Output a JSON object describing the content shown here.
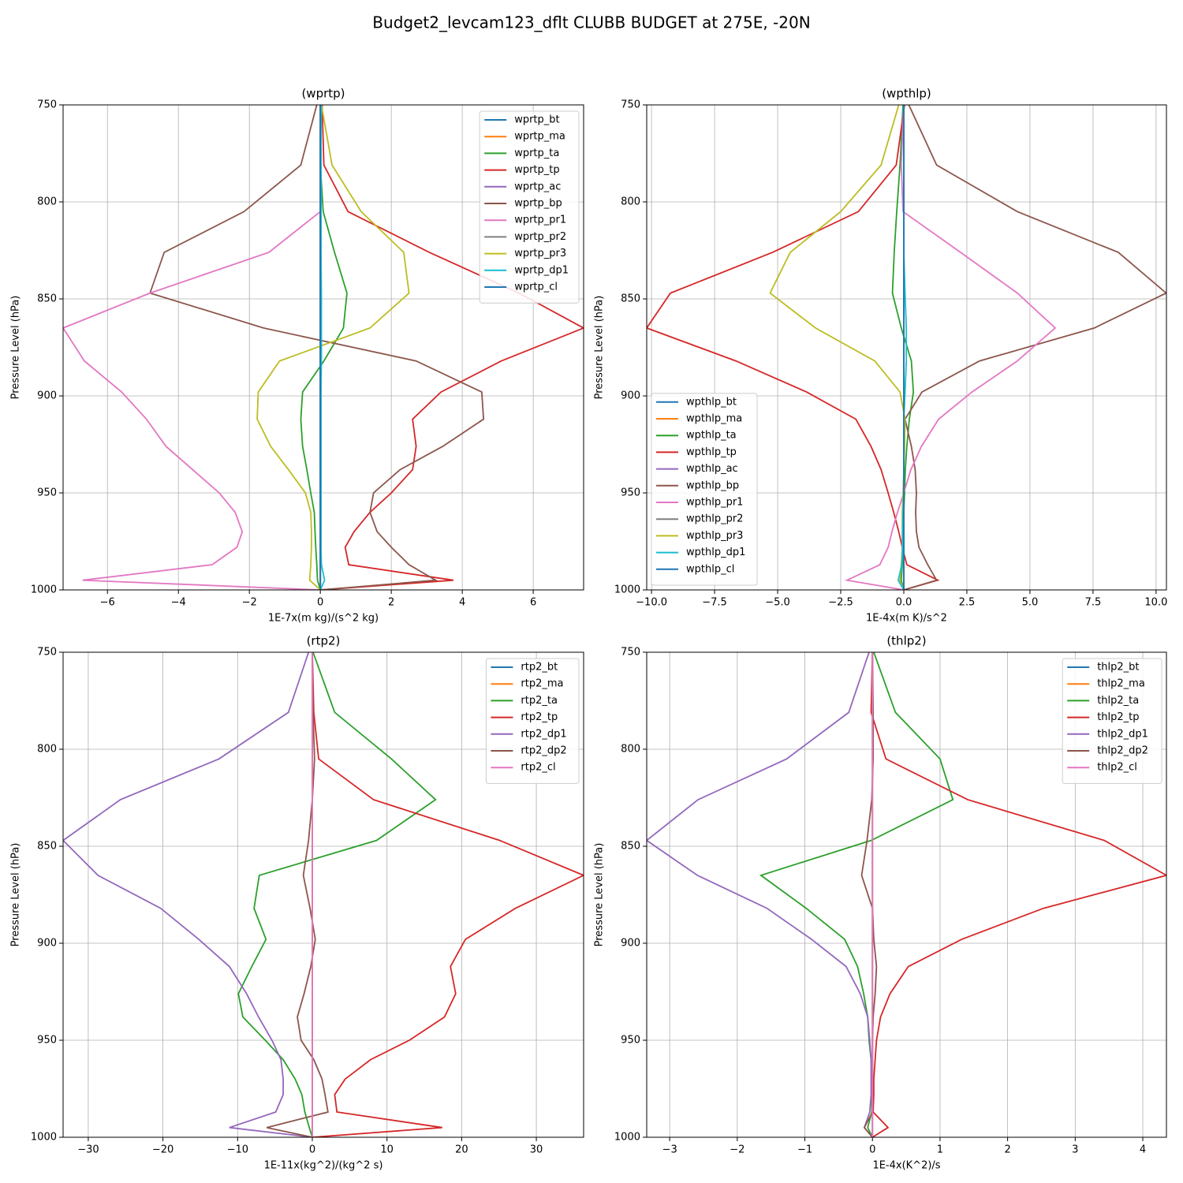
{
  "title": "Budget2_levcam123_dflt CLUBB BUDGET at 275E, -20N",
  "chart_data": [
    {
      "type": "line",
      "title": "(wprtp)",
      "x_label": "1E-7x(m kg)/(s^2 kg)",
      "y_label": "Pressure Level (hPa)",
      "y": [
        750,
        781,
        805,
        826,
        847,
        865,
        882,
        898,
        912,
        926,
        938,
        950,
        960,
        970,
        978,
        987,
        995,
        1000
      ],
      "xlim": [
        -7.25,
        7.42
      ],
      "ylim": [
        1000,
        750
      ],
      "xticks": [
        {
          "value": -6,
          "label": "−6"
        },
        {
          "value": -4,
          "label": "−4"
        },
        {
          "value": -2,
          "label": "−2"
        },
        0,
        2,
        4,
        6
      ],
      "yticks": [
        750,
        800,
        850,
        900,
        950,
        1000
      ],
      "grid": true,
      "legend": "upper right",
      "series": [
        {
          "name": "wprtp_bt",
          "color": "#1f77b4",
          "values": [
            0,
            0,
            0,
            0,
            0,
            0,
            0,
            0,
            0,
            0,
            0,
            0,
            0,
            0,
            0,
            0,
            0,
            0
          ]
        },
        {
          "name": "wprtp_ma",
          "color": "#ff7f0e",
          "values": [
            0,
            0,
            0,
            0,
            0,
            0,
            0,
            0,
            0,
            0,
            0,
            0,
            0,
            0,
            0,
            0,
            0,
            0
          ]
        },
        {
          "name": "wprtp_ta",
          "color": "#2ca02c",
          "values": [
            0,
            0,
            0.08,
            0.4,
            0.75,
            0.65,
            0.1,
            -0.5,
            -0.55,
            -0.5,
            -0.38,
            -0.27,
            -0.17,
            -0.15,
            -0.13,
            -0.1,
            -0.08,
            0
          ]
        },
        {
          "name": "wprtp_tp",
          "color": "#d62728",
          "values": [
            0.05,
            0.1,
            0.78,
            3.07,
            5.6,
            7.42,
            5.1,
            3.4,
            2.6,
            2.7,
            2.6,
            2.0,
            1.4,
            0.95,
            0.7,
            0.8,
            3.75,
            0
          ]
        },
        {
          "name": "wprtp_ac",
          "color": "#9467bd",
          "values": [
            0,
            0,
            0,
            0,
            0,
            0,
            0,
            0,
            0,
            0,
            0,
            0,
            0,
            0,
            0,
            0,
            0,
            0
          ]
        },
        {
          "name": "wprtp_bp",
          "color": "#8c564b",
          "values": [
            -0.1,
            -0.55,
            -2.15,
            -4.4,
            -4.8,
            -1.6,
            2.7,
            4.55,
            4.6,
            3.45,
            2.25,
            1.5,
            1.4,
            1.6,
            2.0,
            2.5,
            3.25,
            0
          ]
        },
        {
          "name": "wprtp_pr1",
          "color": "#e377c2",
          "values": [
            0,
            0,
            0,
            -1.45,
            -4.8,
            -7.25,
            -6.65,
            -5.6,
            -4.9,
            -4.35,
            -3.6,
            -2.85,
            -2.4,
            -2.2,
            -2.35,
            -3.05,
            -6.7,
            0
          ]
        },
        {
          "name": "wprtp_pr2",
          "color": "#7f7f7f",
          "values": [
            0,
            0,
            0,
            0,
            0,
            0,
            0,
            0,
            0,
            0,
            0,
            0,
            0,
            0,
            0,
            0,
            0,
            0
          ]
        },
        {
          "name": "wprtp_pr3",
          "color": "#bcbd22",
          "values": [
            0.03,
            0.33,
            1.15,
            2.35,
            2.5,
            1.4,
            -1.15,
            -1.75,
            -1.78,
            -1.4,
            -0.9,
            -0.42,
            -0.27,
            -0.25,
            -0.25,
            -0.27,
            -0.3,
            0
          ]
        },
        {
          "name": "wprtp_dp1",
          "color": "#17becf",
          "values": [
            0.02,
            0.02,
            0.02,
            0.02,
            0.03,
            0.03,
            0.03,
            0.02,
            0.02,
            0.02,
            0.02,
            0.02,
            0.02,
            0.02,
            0.02,
            0.03,
            0.12,
            0
          ]
        },
        {
          "name": "wprtp_cl",
          "color": "#1f77b4",
          "values": [
            0,
            0,
            0,
            0,
            0,
            0,
            0,
            0,
            0,
            0,
            0,
            0,
            0,
            0,
            0,
            0,
            0,
            0
          ]
        }
      ]
    },
    {
      "type": "line",
      "title": "(wpthlp)",
      "x_label": "1E-4x(m K)/s^2",
      "y_label": "Pressure Level (hPa)",
      "y": [
        750,
        781,
        805,
        826,
        847,
        865,
        882,
        898,
        912,
        926,
        938,
        950,
        960,
        970,
        978,
        987,
        995,
        1000
      ],
      "xlim": [
        -10.19,
        10.41
      ],
      "ylim": [
        1000,
        750
      ],
      "xticks": [
        {
          "value": -10,
          "label": "−10.0"
        },
        {
          "value": -7.5,
          "label": "−7.5"
        },
        {
          "value": -5,
          "label": "−5.0"
        },
        {
          "value": -2.5,
          "label": "−2.5"
        },
        {
          "value": 0,
          "label": "0.0"
        },
        2.5,
        {
          "value": 5,
          "label": "5.0"
        },
        7.5,
        {
          "value": 10,
          "label": "10.0"
        }
      ],
      "yticks": [
        750,
        800,
        850,
        900,
        950,
        1000
      ],
      "grid": true,
      "legend": "lower left",
      "series": [
        {
          "name": "wpthlp_bt",
          "color": "#1f77b4",
          "values": [
            0,
            0,
            0,
            0,
            0,
            0,
            0,
            0,
            0,
            0,
            0,
            0,
            0,
            0,
            0,
            0,
            0,
            0
          ]
        },
        {
          "name": "wpthlp_ma",
          "color": "#ff7f0e",
          "values": [
            0,
            0,
            0,
            0,
            0,
            0,
            0,
            0,
            0,
            0,
            0,
            0,
            0,
            0,
            0,
            0,
            0,
            0
          ]
        },
        {
          "name": "wpthlp_ta",
          "color": "#2ca02c",
          "values": [
            -0.03,
            -0.15,
            -0.28,
            -0.38,
            -0.45,
            -0.1,
            0.3,
            0.38,
            0.22,
            0.12,
            0.06,
            0.03,
            0,
            -0.03,
            -0.03,
            -0.06,
            -0.1,
            0
          ]
        },
        {
          "name": "wpthlp_tp",
          "color": "#d62728",
          "values": [
            0.03,
            -0.3,
            -1.8,
            -5.2,
            -9.25,
            -10.19,
            -6.65,
            -3.85,
            -1.9,
            -1.3,
            -0.9,
            -0.62,
            -0.4,
            -0.2,
            -0.06,
            0.12,
            1.35,
            0
          ]
        },
        {
          "name": "wpthlp_ac",
          "color": "#9467bd",
          "values": [
            0,
            0,
            0,
            0,
            0,
            0,
            0,
            0,
            0,
            0,
            0,
            0,
            0,
            0,
            0,
            0,
            0,
            0
          ]
        },
        {
          "name": "wpthlp_bp",
          "color": "#8c564b",
          "values": [
            0.2,
            1.3,
            4.5,
            8.5,
            10.4,
            7.55,
            3.0,
            0.72,
            0.05,
            0.3,
            0.45,
            0.5,
            0.47,
            0.5,
            0.6,
            0.95,
            1.3,
            0
          ]
        },
        {
          "name": "wpthlp_pr1",
          "color": "#e377c2",
          "values": [
            0,
            -0.1,
            -0.03,
            2.25,
            4.5,
            6.0,
            4.5,
            2.7,
            1.38,
            0.7,
            0.28,
            0,
            -0.25,
            -0.47,
            -0.62,
            -0.95,
            -2.25,
            0
          ]
        },
        {
          "name": "wpthlp_pr2",
          "color": "#7f7f7f",
          "values": [
            0,
            0,
            0,
            0,
            0,
            0,
            0,
            0,
            0,
            0,
            0,
            0,
            0,
            0,
            0,
            0,
            0,
            0
          ]
        },
        {
          "name": "wpthlp_pr3",
          "color": "#bcbd22",
          "values": [
            -0.2,
            -0.9,
            -2.5,
            -4.5,
            -5.3,
            -3.5,
            -1.15,
            -0.15,
            0.05,
            0.03,
            0,
            -0.03,
            -0.06,
            -0.06,
            -0.06,
            -0.1,
            -0.15,
            0
          ]
        },
        {
          "name": "wpthlp_dp1",
          "color": "#17becf",
          "values": [
            0,
            0,
            0,
            0,
            0.05,
            0.1,
            0.1,
            0.05,
            0,
            0,
            0,
            0,
            -0.03,
            -0.05,
            -0.05,
            -0.08,
            -0.22,
            0
          ]
        },
        {
          "name": "wpthlp_cl",
          "color": "#1f77b4",
          "values": [
            0,
            0,
            0,
            0,
            0,
            0,
            0,
            0,
            0,
            0,
            0,
            0,
            0,
            0,
            0,
            0,
            0,
            0
          ]
        }
      ]
    },
    {
      "type": "line",
      "title": "(rtp2)",
      "x_label": "1E-11x(kg^2)/(kg^2 s)",
      "y_label": "Pressure Level (hPa)",
      "y": [
        750,
        781,
        805,
        826,
        847,
        865,
        882,
        898,
        912,
        926,
        938,
        950,
        960,
        970,
        978,
        987,
        995,
        1000
      ],
      "xlim": [
        -33.37,
        36.33
      ],
      "ylim": [
        1000,
        750
      ],
      "xticks": [
        {
          "value": -30,
          "label": "−30"
        },
        {
          "value": -20,
          "label": "−20"
        },
        {
          "value": -10,
          "label": "−10"
        },
        0,
        10,
        20,
        30
      ],
      "yticks": [
        750,
        800,
        850,
        900,
        950,
        1000
      ],
      "grid": true,
      "legend": "upper right",
      "series": [
        {
          "name": "rtp2_bt",
          "color": "#1f77b4",
          "values": [
            0,
            0,
            0,
            0,
            0,
            0,
            0,
            0,
            0,
            0,
            0,
            0,
            0,
            0,
            0,
            0,
            0,
            0
          ]
        },
        {
          "name": "rtp2_ma",
          "color": "#ff7f0e",
          "values": [
            0,
            0,
            0,
            0,
            0,
            0,
            0,
            0,
            0,
            0,
            0,
            0,
            0,
            0,
            0,
            0,
            0,
            0
          ]
        },
        {
          "name": "rtp2_ta",
          "color": "#2ca02c",
          "values": [
            0.1,
            3.0,
            10.6,
            16.5,
            8.6,
            -7.1,
            -7.8,
            -6.2,
            -8.1,
            -9.9,
            -9.3,
            -6.3,
            -3.9,
            -2.3,
            -1.4,
            -1.0,
            -0.4,
            0
          ]
        },
        {
          "name": "rtp2_tp",
          "color": "#d62728",
          "values": [
            0,
            0.2,
            0.85,
            8.2,
            25.1,
            36.33,
            27.2,
            20.5,
            18.5,
            19.2,
            17.7,
            13.0,
            7.8,
            4.4,
            3.0,
            3.3,
            17.4,
            0
          ]
        },
        {
          "name": "rtp2_dp1",
          "color": "#9467bd",
          "values": [
            -0.5,
            -3.2,
            -12.5,
            -25.7,
            -33.37,
            -28.7,
            -20.3,
            -15.2,
            -11.1,
            -8.8,
            -7.2,
            -5.4,
            -4.2,
            -3.9,
            -3.9,
            -4.9,
            -11.1,
            0
          ]
        },
        {
          "name": "rtp2_dp2",
          "color": "#8c564b",
          "values": [
            0,
            0.1,
            0.3,
            0,
            -0.5,
            -1.2,
            -0.3,
            0.4,
            -0.2,
            -1.1,
            -2.0,
            -1.5,
            0.2,
            1.3,
            1.7,
            2.1,
            -6.1,
            0
          ]
        },
        {
          "name": "rtp2_cl",
          "color": "#e377c2",
          "values": [
            0,
            0,
            0,
            0,
            0,
            0,
            0,
            0,
            0,
            0,
            0,
            0,
            0,
            0,
            0,
            0,
            0,
            0
          ]
        }
      ]
    },
    {
      "type": "line",
      "title": "(thlp2)",
      "x_label": "1E-4x(K^2)/s",
      "y_label": "Pressure Level (hPa)",
      "y": [
        750,
        781,
        805,
        826,
        847,
        865,
        882,
        898,
        912,
        926,
        938,
        950,
        960,
        970,
        978,
        987,
        995,
        1000
      ],
      "xlim": [
        -3.34,
        4.35
      ],
      "ylim": [
        1000,
        750
      ],
      "xticks": [
        {
          "value": -3,
          "label": "−3"
        },
        {
          "value": -2,
          "label": "−2"
        },
        {
          "value": -1,
          "label": "−1"
        },
        0,
        1,
        2,
        3,
        4
      ],
      "yticks": [
        750,
        800,
        850,
        900,
        950,
        1000
      ],
      "grid": true,
      "legend": "upper right",
      "series": [
        {
          "name": "thlp2_bt",
          "color": "#1f77b4",
          "values": [
            0,
            0,
            0,
            0,
            0,
            0,
            0,
            0,
            0,
            0,
            0,
            0,
            0,
            0,
            0,
            0,
            0,
            0
          ]
        },
        {
          "name": "thlp2_ma",
          "color": "#ff7f0e",
          "values": [
            0,
            0,
            0,
            0,
            0,
            0,
            0,
            0,
            0,
            0,
            0,
            0,
            0,
            0,
            0,
            0,
            0,
            0
          ]
        },
        {
          "name": "thlp2_ta",
          "color": "#2ca02c",
          "values": [
            0.02,
            0.34,
            1.0,
            1.19,
            -0.02,
            -1.65,
            -0.98,
            -0.41,
            -0.22,
            -0.13,
            -0.07,
            -0.05,
            -0.02,
            -0.01,
            -0.01,
            -0.01,
            -0.07,
            0
          ]
        },
        {
          "name": "thlp2_tp",
          "color": "#d62728",
          "values": [
            0,
            -0.02,
            0.2,
            1.41,
            3.43,
            4.35,
            2.53,
            1.32,
            0.53,
            0.26,
            0.12,
            0.06,
            0.04,
            0.02,
            0.02,
            0.01,
            0.23,
            0
          ]
        },
        {
          "name": "thlp2_dp1",
          "color": "#9467bd",
          "values": [
            -0.05,
            -0.35,
            -1.27,
            -2.58,
            -3.34,
            -2.59,
            -1.56,
            -0.9,
            -0.39,
            -0.18,
            -0.07,
            -0.04,
            -0.02,
            -0.02,
            -0.02,
            -0.04,
            -0.12,
            0
          ]
        },
        {
          "name": "thlp2_dp2",
          "color": "#8c564b",
          "values": [
            0,
            0.01,
            0.01,
            -0.01,
            -0.08,
            -0.16,
            0,
            0.02,
            0.06,
            0.04,
            0.01,
            0,
            0,
            0,
            0,
            0,
            -0.12,
            0
          ]
        },
        {
          "name": "thlp2_cl",
          "color": "#e377c2",
          "values": [
            0,
            0,
            0,
            0,
            0,
            0,
            0,
            0,
            0,
            0,
            0,
            0,
            0,
            0,
            0,
            0,
            0,
            0
          ]
        }
      ]
    }
  ]
}
